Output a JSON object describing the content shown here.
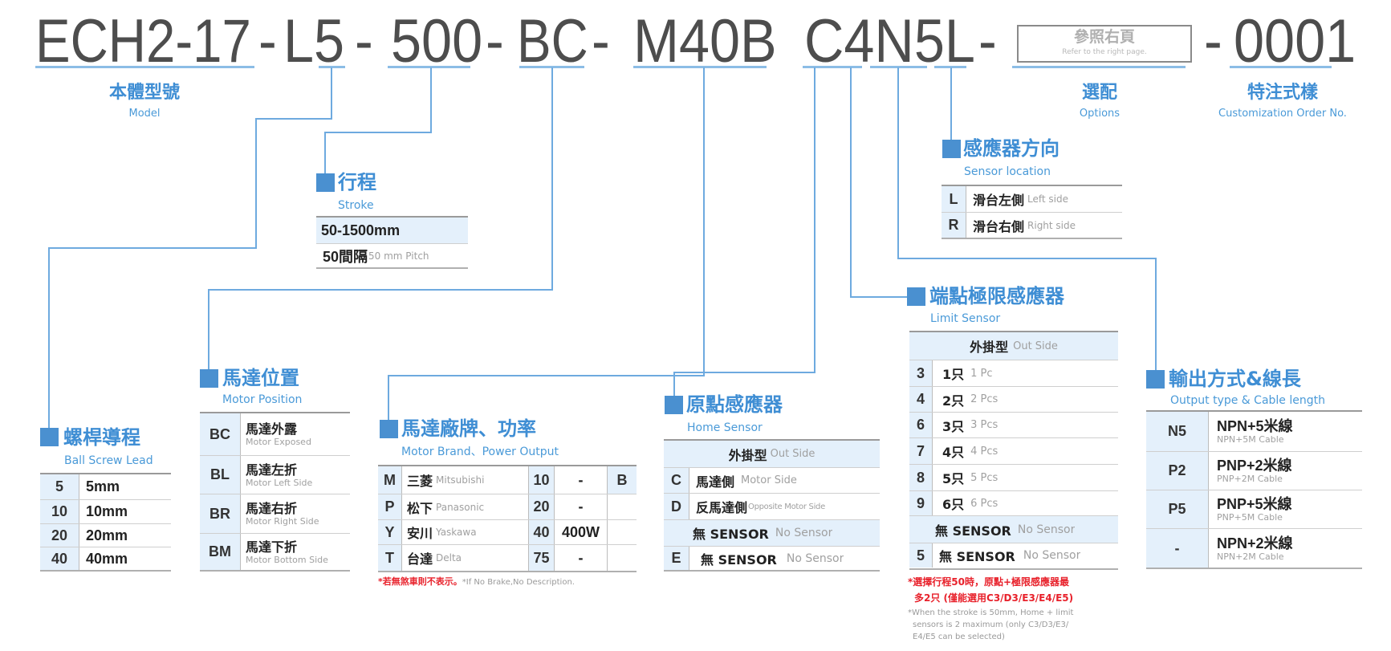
{
  "colors": {
    "accent_blue": "#4a90d0",
    "line_blue": "#6eaadf",
    "cell_bg": "#e4f0fb",
    "note_red": "#e8212b",
    "code_gray": "#4d4d4d"
  },
  "header": {
    "segments": [
      "ECH2-17",
      "-",
      "L5",
      "-",
      "500",
      "-",
      "BC",
      "-",
      "M40B",
      "C4N5L",
      "-",
      "-",
      "0001"
    ],
    "options_box": {
      "zh": "參照右頁",
      "en": "Refer to the right page."
    },
    "labels": {
      "model": {
        "zh": "本體型號",
        "en": "Model"
      },
      "options": {
        "zh": "選配",
        "en": "Options"
      },
      "custom": {
        "zh": "特注式樣",
        "en": "Customization Order No."
      }
    }
  },
  "stroke": {
    "title": "行程",
    "subtitle": "Stroke",
    "range": "50-1500mm",
    "pitch_zh": "50間隔",
    "pitch_en": "50 mm Pitch"
  },
  "ball_screw": {
    "title": "螺桿導程",
    "subtitle": "Ball Screw Lead",
    "rows": [
      [
        "5",
        "5mm"
      ],
      [
        "10",
        "10mm"
      ],
      [
        "20",
        "20mm"
      ],
      [
        "40",
        "40mm"
      ]
    ]
  },
  "motor_position": {
    "title": "馬達位置",
    "subtitle": "Motor Position",
    "rows": [
      {
        "code": "BC",
        "zh": "馬達外露",
        "en": "Motor Exposed"
      },
      {
        "code": "BL",
        "zh": "馬達左折",
        "en": "Motor Left Side"
      },
      {
        "code": "BR",
        "zh": "馬達右折",
        "en": "Motor Right Side"
      },
      {
        "code": "BM",
        "zh": "馬達下折",
        "en": "Motor Bottom Side"
      }
    ]
  },
  "motor_brand": {
    "title": "馬達廠牌、功率",
    "subtitle": "Motor Brand、Power Output",
    "rows": [
      {
        "code": "M",
        "zh": "三菱",
        "en": "Mitsubishi",
        "power": "10",
        "watt": "-",
        "brake": "B"
      },
      {
        "code": "P",
        "zh": "松下",
        "en": "Panasonic",
        "power": "20",
        "watt": "-",
        "brake": ""
      },
      {
        "code": "Y",
        "zh": "安川",
        "en": "Yaskawa",
        "power": "40",
        "watt": "400W",
        "brake": ""
      },
      {
        "code": "T",
        "zh": "台達",
        "en": "Delta",
        "power": "75",
        "watt": "-",
        "brake": ""
      }
    ],
    "note_red": "*若無煞車則不表示。",
    "note_gray": "*If No Brake,No Description."
  },
  "home_sensor": {
    "title": "原點感應器",
    "subtitle": "Home Sensor",
    "header_zh": "外掛型",
    "header_en": "Out Side",
    "rows": [
      {
        "code": "C",
        "zh": "馬達側",
        "en": "Motor Side"
      },
      {
        "code": "D",
        "zh": "反馬達側",
        "en": "Opposite Motor Side"
      }
    ],
    "none_header_zh": "無 SENSOR",
    "none_header_en": "No Sensor",
    "none_row": {
      "code": "E",
      "zh": "無 SENSOR",
      "en": "No Sensor"
    }
  },
  "limit_sensor": {
    "title": "端點極限感應器",
    "subtitle": "Limit Sensor",
    "header_zh": "外掛型",
    "header_en": "Out Side",
    "rows": [
      {
        "code": "3",
        "zh": "1只",
        "en": "1 Pc"
      },
      {
        "code": "4",
        "zh": "2只",
        "en": "2 Pcs"
      },
      {
        "code": "6",
        "zh": "3只",
        "en": "3 Pcs"
      },
      {
        "code": "7",
        "zh": "4只",
        "en": "4 Pcs"
      },
      {
        "code": "8",
        "zh": "5只",
        "en": "5 Pcs"
      },
      {
        "code": "9",
        "zh": "6只",
        "en": "6 Pcs"
      }
    ],
    "none_header_zh": "無 SENSOR",
    "none_header_en": "No Sensor",
    "none_row": {
      "code": "5",
      "zh": "無 SENSOR",
      "en": "No Sensor"
    },
    "note_red": [
      "*選擇行程50時，原點+極限感應器最",
      "多2只 (僅能選用C3/D3/E3/E4/E5)"
    ],
    "note_gray": [
      "*When the stroke is 50mm, Home + limit",
      "sensors is 2 maximum (only C3/D3/E3/",
      "E4/E5 can be selected)"
    ]
  },
  "output_type": {
    "title": "輸出方式&線長",
    "subtitle": "Output type & Cable length",
    "rows": [
      {
        "code": "N5",
        "zh": "NPN+5米線",
        "en": "NPN+5M Cable"
      },
      {
        "code": "P2",
        "zh": "PNP+2米線",
        "en": "PNP+2M Cable"
      },
      {
        "code": "P5",
        "zh": "PNP+5米線",
        "en": "PNP+5M Cable"
      },
      {
        "code": "-",
        "zh": "NPN+2米線",
        "en": "NPN+2M Cable"
      }
    ]
  },
  "sensor_location": {
    "title": "感應器方向",
    "subtitle": "Sensor location",
    "rows": [
      {
        "code": "L",
        "zh": "滑台左側",
        "en": "Left side"
      },
      {
        "code": "R",
        "zh": "滑台右側",
        "en": "Right side"
      }
    ]
  }
}
